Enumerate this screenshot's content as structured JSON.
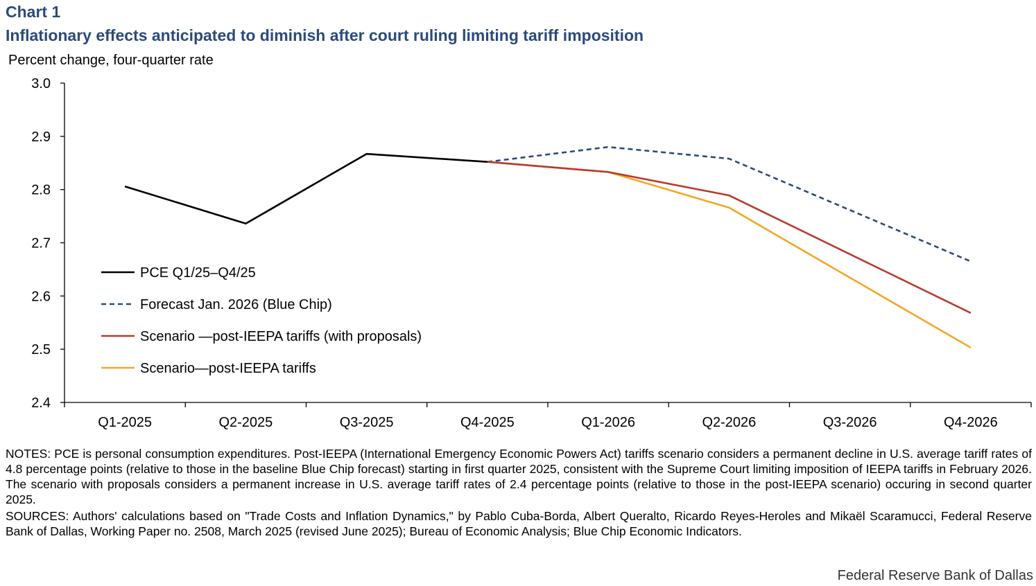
{
  "header": {
    "label": "Chart 1",
    "title": "Inflationary effects anticipated to diminish after court ruling limiting tariff imposition",
    "units": "Percent change, four-quarter rate"
  },
  "chart_data": {
    "type": "line",
    "title": "Inflationary effects anticipated to diminish after court ruling limiting tariff imposition",
    "ylabel": "Percent change, four-quarter rate",
    "xlabel": "",
    "categories": [
      "Q1-2025",
      "Q2-2025",
      "Q3-2025",
      "Q4-2025",
      "Q1-2026",
      "Q2-2026",
      "Q3-2026",
      "Q4-2026"
    ],
    "ylim": [
      2.4,
      3.0
    ],
    "yticks": [
      "2.4",
      "2.5",
      "2.6",
      "2.7",
      "2.8",
      "2.9",
      "3.0"
    ],
    "grid": false,
    "legend_position": "lower-left",
    "series": [
      {
        "name": "PCE Q1/25–Q4/25",
        "color": "#000000",
        "dash": "solid",
        "values": [
          2.806,
          2.736,
          2.867,
          2.852,
          null,
          null,
          null,
          null
        ]
      },
      {
        "name": "Forecast Jan. 2026 (Blue Chip)",
        "color": "#2b4a7a",
        "dash": "dashed",
        "values": [
          null,
          null,
          null,
          2.852,
          2.88,
          2.858,
          null,
          2.665
        ]
      },
      {
        "name": "Scenario —post-IEEPA tariffs (with proposals)",
        "color": "#b83a2e",
        "dash": "solid",
        "values": [
          null,
          null,
          null,
          2.852,
          2.833,
          2.789,
          null,
          2.568
        ]
      },
      {
        "name": "Scenario—post-IEEPA tariffs",
        "color": "#f5a623",
        "dash": "solid",
        "values": [
          null,
          null,
          null,
          2.852,
          2.833,
          2.766,
          null,
          2.503
        ]
      }
    ]
  },
  "notes": {
    "notes_text": "NOTES: PCE is personal consumption expenditures.  Post-IEEPA (International Emergency Economic Powers Act) tariffs scenario considers a permanent decline in U.S. average tariff rates of 4.8 percentage points (relative to those in the baseline Blue Chip forecast) starting in first quarter 2025, consistent with the Supreme Court limiting imposition of IEEPA tariffs in February 2026. The scenario with proposals considers a permanent increase in U.S. average tariff rates of 2.4 percentage points (relative to those in the post-IEEPA scenario) occuring in second quarter 2025.",
    "sources_text": "SOURCES: Authors' calculations based on \"Trade Costs and Inflation Dynamics,\" by Pablo Cuba-Borda, Albert Queralto, Ricardo Reyes-Heroles and Mikaël Scaramucci, Federal Reserve Bank of Dallas, Working Paper no. 2508, March 2025 (revised June 2025); Bureau of Economic Analysis; Blue Chip Economic Indicators."
  },
  "credit": "Federal Reserve Bank of Dallas"
}
